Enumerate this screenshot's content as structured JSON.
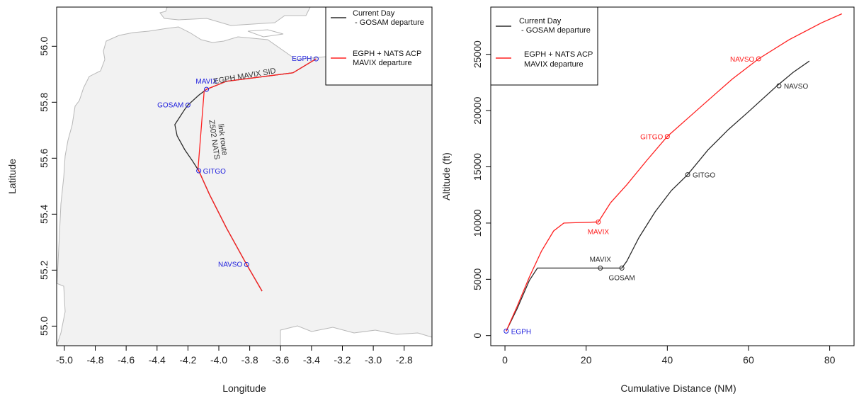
{
  "colors": {
    "current": "#2b2b2b",
    "proposed": "#ff2020",
    "waypoint_blue": "#2222dd",
    "land": "#f2f2f2",
    "coast": "#b8b8b8"
  },
  "chart_data": [
    {
      "type": "line",
      "kind": "map",
      "title": "",
      "xlabel": "Longitude",
      "ylabel": "Latitude",
      "xlim": [
        -5.05,
        -2.62
      ],
      "ylim": [
        54.93,
        56.14
      ],
      "xticks": [
        -5.0,
        -4.8,
        -4.6,
        -4.4,
        -4.2,
        -4.0,
        -3.8,
        -3.6,
        -3.4,
        -3.2,
        -3.0,
        -2.8
      ],
      "xtick_labels": [
        "-5.0",
        "-4.8",
        "-4.6",
        "-4.4",
        "-4.2",
        "-4.0",
        "-3.8",
        "-3.6",
        "-3.4",
        "-3.2",
        "-3.0",
        "-2.8"
      ],
      "yticks": [
        55.0,
        55.2,
        55.4,
        55.6,
        55.8,
        56.0
      ],
      "ytick_labels": [
        "55.0",
        "55.2",
        "55.4",
        "55.6",
        "55.8",
        "56.0"
      ],
      "legend": {
        "position": "top-right",
        "entries": [
          {
            "line1": "Current Day",
            "line2": " - GOSAM departure",
            "series": "current"
          },
          {
            "line1": "EGPH + NATS ACP",
            "line2": "MAVIX departure",
            "series": "proposed"
          }
        ]
      },
      "series": [
        {
          "id": "current",
          "points": [
            [
              -3.37,
              55.955
            ],
            [
              -3.52,
              55.905
            ],
            [
              -3.95,
              55.875
            ],
            [
              -4.08,
              55.846
            ],
            [
              -4.13,
              55.825
            ],
            [
              -4.2,
              55.79
            ],
            [
              -4.22,
              55.775
            ],
            [
              -4.285,
              55.72
            ],
            [
              -4.27,
              55.68
            ],
            [
              -4.22,
              55.63
            ],
            [
              -4.17,
              55.59
            ],
            [
              -4.13,
              55.555
            ],
            [
              -4.06,
              55.47
            ],
            [
              -3.95,
              55.35
            ],
            [
              -3.82,
              55.22
            ],
            [
              -3.72,
              55.125
            ]
          ]
        },
        {
          "id": "proposed",
          "points": [
            [
              -3.37,
              55.955
            ],
            [
              -3.52,
              55.905
            ],
            [
              -3.95,
              55.875
            ],
            [
              -4.08,
              55.846
            ],
            [
              -4.095,
              55.84
            ],
            [
              -4.135,
              55.56
            ],
            [
              -4.13,
              55.555
            ],
            [
              -4.06,
              55.47
            ],
            [
              -3.95,
              55.35
            ],
            [
              -3.82,
              55.22
            ],
            [
              -3.72,
              55.125
            ]
          ]
        }
      ],
      "waypoints": [
        {
          "name": "EGPH",
          "lon": -3.37,
          "lat": 55.955,
          "label_pos": "left"
        },
        {
          "name": "MAVIX",
          "lon": -4.08,
          "lat": 55.846,
          "label_pos": "above"
        },
        {
          "name": "GOSAM",
          "lon": -4.2,
          "lat": 55.79,
          "label_pos": "left"
        },
        {
          "name": "GITGO",
          "lon": -4.13,
          "lat": 55.555,
          "label_pos": "right"
        },
        {
          "name": "NAVSO",
          "lon": -3.82,
          "lat": 55.22,
          "label_pos": "left"
        }
      ],
      "route_labels": [
        {
          "text": "EGPH MAVIX SID",
          "lon": -3.83,
          "lat": 55.885
        },
        {
          "text": "Z502 NATS",
          "lon": -4.045,
          "lat": 55.665
        },
        {
          "text": "link route",
          "lon": -3.99,
          "lat": 55.665
        }
      ]
    },
    {
      "type": "line",
      "kind": "profile",
      "title": "",
      "xlabel": "Cumulative Distance (NM)",
      "ylabel": "Altitude (ft)",
      "xlim": [
        -3.5,
        86
      ],
      "ylim": [
        -900,
        29200
      ],
      "xticks": [
        0,
        20,
        40,
        60,
        80
      ],
      "xtick_labels": [
        "0",
        "20",
        "40",
        "60",
        "80"
      ],
      "yticks": [
        0,
        5000,
        10000,
        15000,
        20000,
        25000
      ],
      "ytick_labels": [
        "0",
        "5000",
        "10000",
        "15000",
        "20000",
        "25000"
      ],
      "legend": {
        "position": "top-left",
        "entries": [
          {
            "line1": "Current Day",
            "line2": " - GOSAM departure",
            "series": "current"
          },
          {
            "line1": "EGPH + NATS ACP",
            "line2": "MAVIX departure",
            "series": "proposed"
          }
        ]
      },
      "series": [
        {
          "id": "current",
          "points": [
            [
              0.3,
              400
            ],
            [
              3,
              2400
            ],
            [
              6,
              4900
            ],
            [
              8,
              6000
            ],
            [
              23.5,
              6000
            ],
            [
              28.8,
              6000
            ],
            [
              30,
              6600
            ],
            [
              33,
              8700
            ],
            [
              37,
              11000
            ],
            [
              41,
              12900
            ],
            [
              45,
              14300
            ],
            [
              50,
              16500
            ],
            [
              55,
              18300
            ],
            [
              60,
              19900
            ],
            [
              67,
              22200
            ],
            [
              71,
              23400
            ],
            [
              75,
              24400
            ]
          ]
        },
        {
          "id": "proposed",
          "points": [
            [
              0.3,
              400
            ],
            [
              3,
              2600
            ],
            [
              6,
              5200
            ],
            [
              9,
              7500
            ],
            [
              12,
              9300
            ],
            [
              14.5,
              10000
            ],
            [
              23,
              10100
            ],
            [
              26,
              11800
            ],
            [
              30,
              13400
            ],
            [
              35,
              15600
            ],
            [
              40,
              17700
            ],
            [
              45,
              19300
            ],
            [
              50,
              20900
            ],
            [
              56,
              22800
            ],
            [
              62.5,
              24600
            ],
            [
              70,
              26300
            ],
            [
              78,
              27800
            ],
            [
              83,
              28600
            ]
          ]
        }
      ],
      "waypoints": [
        {
          "name": "EGPH",
          "series": "current",
          "x": 0.3,
          "y": 400,
          "label_pos": "right",
          "color": "blue"
        },
        {
          "name": "MAVIX",
          "series": "current",
          "x": 23.5,
          "y": 6000,
          "label_pos": "above"
        },
        {
          "name": "GOSAM",
          "series": "current",
          "x": 28.8,
          "y": 6000,
          "label_pos": "below"
        },
        {
          "name": "GITGO",
          "series": "current",
          "x": 45,
          "y": 14300,
          "label_pos": "right"
        },
        {
          "name": "NAVSO",
          "series": "current",
          "x": 67.5,
          "y": 22200,
          "label_pos": "right"
        },
        {
          "name": "MAVIX",
          "series": "proposed",
          "x": 23,
          "y": 10100,
          "label_pos": "below"
        },
        {
          "name": "GITGO",
          "series": "proposed",
          "x": 40,
          "y": 17700,
          "label_pos": "left"
        },
        {
          "name": "NAVSO",
          "series": "proposed",
          "x": 62.5,
          "y": 24600,
          "label_pos": "left"
        }
      ]
    }
  ]
}
